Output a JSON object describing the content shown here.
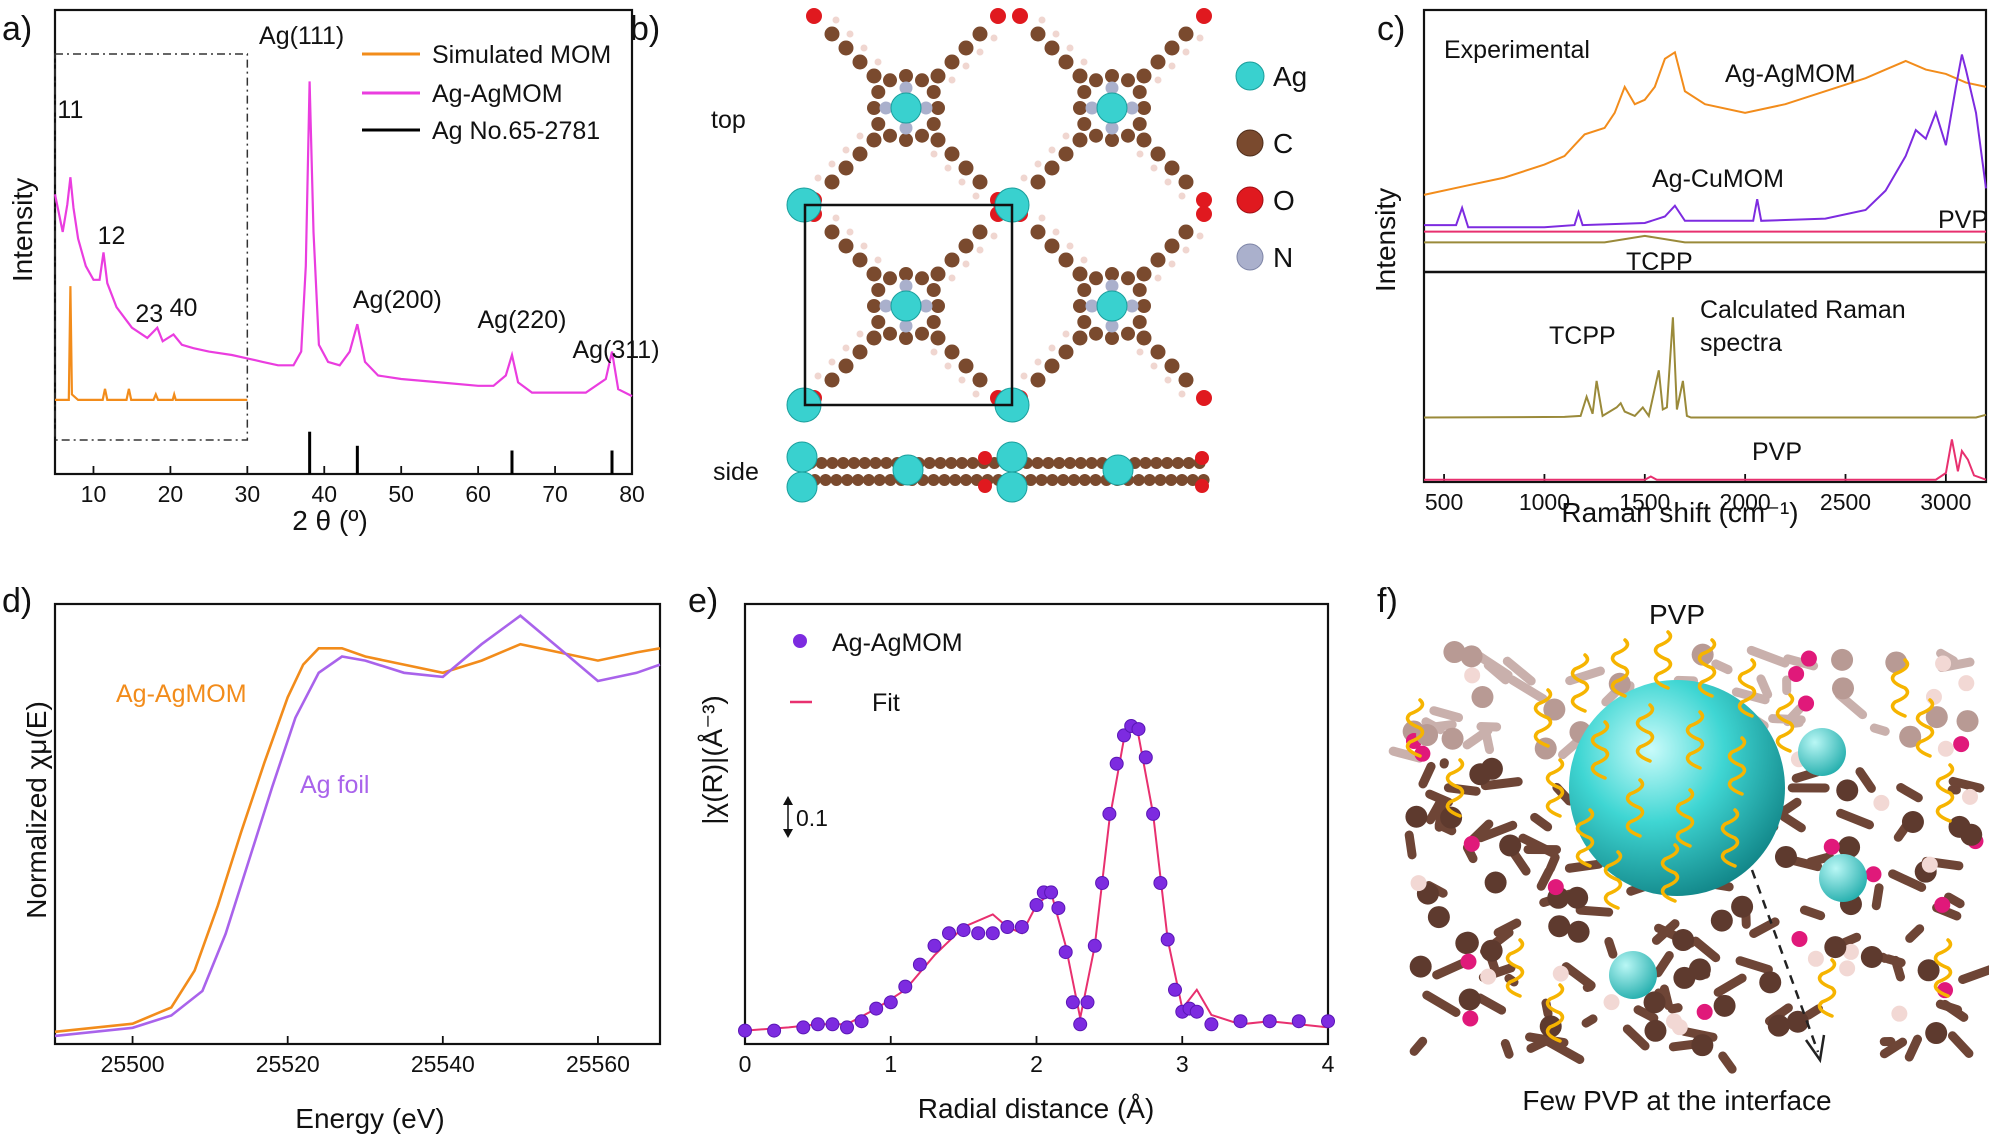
{
  "chart_data": [
    {
      "panel": "a)",
      "type": "line",
      "xlabel": "2 θ (º)",
      "ylabel": "Intensity",
      "xlim": [
        5,
        80
      ],
      "xticks": [
        10,
        20,
        30,
        40,
        50,
        60,
        70,
        80
      ],
      "inset_box_x": [
        5,
        30
      ],
      "legend_position": "top-right",
      "legend": [
        "Simulated MOM",
        "Ag-AgMOM",
        "Ag No.65-2781"
      ],
      "colors": {
        "Simulated MOM": "#f28c1b",
        "Ag-AgMOM": "#ea3ddf",
        "Ag No.65-2781": "#000000"
      },
      "peak_labels": [
        {
          "text": "11",
          "x": 7.0
        },
        {
          "text": "12",
          "x": 11.3
        },
        {
          "text": "23",
          "x": 18.3
        },
        {
          "text": "40",
          "x": 20.4
        },
        {
          "text": "Ag(111)",
          "x": 38.1
        },
        {
          "text": "Ag(200)",
          "x": 44.3
        },
        {
          "text": "Ag(220)",
          "x": 64.4
        },
        {
          "text": "Ag(311)",
          "x": 77.4
        }
      ],
      "series": [
        {
          "name": "Ag-AgMOM",
          "x": [
            5,
            6,
            6.6,
            7,
            7.4,
            8,
            9,
            10,
            10.8,
            11.3,
            11.8,
            13,
            15,
            17,
            18.3,
            19,
            20.4,
            21.5,
            23,
            25,
            28,
            30,
            32,
            34,
            36,
            37,
            37.6,
            38.1,
            38.6,
            39.3,
            40.5,
            42,
            43.3,
            44.3,
            45.3,
            47,
            50,
            55,
            60,
            62,
            63.6,
            64.4,
            65.2,
            67,
            70,
            74,
            76.6,
            77.4,
            78.2,
            80
          ],
          "y": [
            0.66,
            0.55,
            0.63,
            0.71,
            0.62,
            0.53,
            0.45,
            0.41,
            0.41,
            0.49,
            0.4,
            0.33,
            0.27,
            0.24,
            0.27,
            0.23,
            0.25,
            0.22,
            0.21,
            0.2,
            0.19,
            0.18,
            0.17,
            0.16,
            0.16,
            0.2,
            0.45,
            0.99,
            0.55,
            0.22,
            0.17,
            0.16,
            0.2,
            0.28,
            0.17,
            0.13,
            0.12,
            0.11,
            0.1,
            0.1,
            0.13,
            0.19,
            0.11,
            0.08,
            0.08,
            0.08,
            0.12,
            0.2,
            0.09,
            0.07
          ]
        },
        {
          "name": "Simulated MOM",
          "x": [
            5,
            6.8,
            7.0,
            7.2,
            8,
            11.2,
            11.5,
            11.8,
            14.3,
            14.6,
            14.9,
            17.8,
            18.1,
            18.4,
            20.3,
            20.5,
            20.7,
            22,
            24,
            28,
            30
          ],
          "y": [
            0.035,
            0.035,
            0.34,
            0.05,
            0.035,
            0.035,
            0.065,
            0.035,
            0.035,
            0.065,
            0.035,
            0.035,
            0.05,
            0.035,
            0.035,
            0.05,
            0.035,
            0.035,
            0.035,
            0.035,
            0.035
          ]
        },
        {
          "name": "Ag No.65-2781",
          "type": "stick",
          "x": [
            38.1,
            44.3,
            64.4,
            77.4
          ],
          "y": [
            0.09,
            0.06,
            0.05,
            0.05
          ]
        }
      ]
    },
    {
      "panel": "b)",
      "type": "diagram",
      "view_labels": [
        "top",
        "side"
      ],
      "legend": [
        {
          "name": "Ag",
          "color": "#39d1cf"
        },
        {
          "name": "C",
          "color": "#7a4a2e"
        },
        {
          "name": "O",
          "color": "#e0191f"
        },
        {
          "name": "N",
          "color": "#aab0cc"
        }
      ]
    },
    {
      "panel": "c)",
      "type": "line",
      "xlabel": "Raman shift (cm⁻¹)",
      "ylabel": "Intensity",
      "xlim": [
        400,
        3200
      ],
      "xticks": [
        500,
        1000,
        1500,
        2000,
        2500,
        3000
      ],
      "subpanel_labels": [
        "Experimental",
        "Calculated Raman spectra"
      ],
      "series_labels": [
        "Ag-AgMOM",
        "Ag-CuMOM",
        "PVP",
        "TCPP",
        "TCPP",
        "PVP"
      ],
      "colors": {
        "Ag-AgMOM": "#f28c1b",
        "Ag-CuMOM": "#7d2be0",
        "PVP": "#e8306f",
        "TCPP": "#9a8a3a"
      },
      "series": [
        {
          "name": "Ag-AgMOM",
          "panel": "top",
          "x": [
            400,
            600,
            800,
            1000,
            1100,
            1150,
            1200,
            1300,
            1350,
            1400,
            1450,
            1500,
            1550,
            1600,
            1650,
            1700,
            1800,
            2000,
            2200,
            2400,
            2600,
            2700,
            2800,
            2900,
            3000,
            3100,
            3200
          ],
          "y": [
            0.32,
            0.36,
            0.4,
            0.46,
            0.5,
            0.55,
            0.6,
            0.63,
            0.7,
            0.82,
            0.74,
            0.76,
            0.82,
            0.95,
            0.98,
            0.8,
            0.74,
            0.7,
            0.74,
            0.8,
            0.86,
            0.9,
            0.94,
            0.9,
            0.88,
            0.84,
            0.82
          ]
        },
        {
          "name": "Ag-CuMOM",
          "panel": "top",
          "x": [
            400,
            560,
            590,
            620,
            1000,
            1150,
            1170,
            1190,
            1500,
            1600,
            1650,
            1700,
            2000,
            2040,
            2060,
            2080,
            2400,
            2600,
            2700,
            2800,
            2850,
            2900,
            2950,
            3000,
            3050,
            3080,
            3100,
            3150,
            3200
          ],
          "y": [
            0.18,
            0.18,
            0.26,
            0.17,
            0.17,
            0.18,
            0.24,
            0.18,
            0.19,
            0.22,
            0.27,
            0.2,
            0.2,
            0.2,
            0.3,
            0.2,
            0.21,
            0.25,
            0.34,
            0.5,
            0.62,
            0.58,
            0.7,
            0.55,
            0.82,
            0.97,
            0.9,
            0.7,
            0.35
          ]
        },
        {
          "name": "PVP",
          "panel": "top",
          "x": [
            400,
            3200
          ],
          "y": [
            0.15,
            0.15
          ]
        },
        {
          "name": "TCPP",
          "panel": "top",
          "x": [
            400,
            1300,
            1500,
            1700,
            1900,
            3200
          ],
          "y": [
            0.1,
            0.1,
            0.13,
            0.1,
            0.1,
            0.1
          ]
        },
        {
          "name": "TCPP",
          "panel": "calculated",
          "x": [
            400,
            1100,
            1180,
            1210,
            1240,
            1260,
            1290,
            1360,
            1380,
            1400,
            1450,
            1490,
            1520,
            1570,
            1590,
            1610,
            1640,
            1660,
            1690,
            1710,
            1730,
            3150,
            3200
          ],
          "y": [
            0.005,
            0.01,
            0.02,
            0.2,
            0.04,
            0.35,
            0.02,
            0.1,
            0.14,
            0.06,
            0.02,
            0.1,
            0.02,
            0.45,
            0.08,
            0.1,
            0.95,
            0.08,
            0.35,
            0.02,
            0.005,
            0.005,
            0.03
          ]
        },
        {
          "name": "PVP",
          "panel": "calculated",
          "x": [
            400,
            1500,
            1530,
            1560,
            2950,
            3000,
            3030,
            3060,
            3080,
            3110,
            3140,
            3200
          ],
          "y": [
            0.005,
            0.005,
            0.06,
            0.005,
            0.005,
            0.12,
            0.7,
            0.15,
            0.5,
            0.35,
            0.08,
            0.005
          ]
        }
      ]
    },
    {
      "panel": "d)",
      "type": "line",
      "xlabel": "Energy (eV)",
      "ylabel": "Normalized χμ(E)",
      "xlim": [
        25490,
        25568
      ],
      "xticks": [
        25500,
        25520,
        25540,
        25560
      ],
      "colors": {
        "Ag-AgMOM": "#f28c1b",
        "Ag foil": "#a963eb"
      },
      "series": [
        {
          "name": "Ag-AgMOM",
          "x": [
            25490,
            25500,
            25505,
            25508,
            25511,
            25514,
            25517,
            25520,
            25522,
            25524,
            25527,
            25530,
            25535,
            25540,
            25545,
            25550,
            25555,
            25560,
            25565,
            25568
          ],
          "y": [
            0.02,
            0.04,
            0.08,
            0.17,
            0.33,
            0.51,
            0.68,
            0.84,
            0.92,
            0.96,
            0.96,
            0.94,
            0.92,
            0.9,
            0.93,
            0.97,
            0.95,
            0.93,
            0.95,
            0.96
          ]
        },
        {
          "name": "Ag foil",
          "x": [
            25490,
            25500,
            25505,
            25509,
            25512,
            25515,
            25518,
            25521,
            25524,
            25527,
            25530,
            25535,
            25540,
            25545,
            25550,
            25555,
            25560,
            25565,
            25568
          ],
          "y": [
            0.01,
            0.03,
            0.06,
            0.12,
            0.26,
            0.44,
            0.62,
            0.79,
            0.9,
            0.94,
            0.93,
            0.9,
            0.89,
            0.97,
            1.04,
            0.96,
            0.88,
            0.9,
            0.92
          ]
        }
      ]
    },
    {
      "panel": "e)",
      "type": "line",
      "xlabel": "Radial distance (Å)",
      "ylabel": "|χ(R)|(Å⁻³)",
      "xlim": [
        0,
        4
      ],
      "xticks": [
        0,
        1,
        2,
        3,
        4
      ],
      "scale_bar_label": "0.1",
      "legend": [
        "Ag-AgMOM",
        "Fit"
      ],
      "colors": {
        "Ag-AgMOM": "#7d2be0",
        "Fit": "#e8306f"
      },
      "series": [
        {
          "name": "Ag-AgMOM",
          "style": "markers",
          "x": [
            0,
            0.2,
            0.4,
            0.5,
            0.6,
            0.7,
            0.8,
            0.9,
            1.0,
            1.1,
            1.2,
            1.3,
            1.4,
            1.5,
            1.6,
            1.7,
            1.8,
            1.9,
            2.0,
            2.05,
            2.1,
            2.15,
            2.2,
            2.25,
            2.3,
            2.35,
            2.4,
            2.45,
            2.5,
            2.55,
            2.6,
            2.65,
            2.7,
            2.75,
            2.8,
            2.85,
            2.9,
            2.95,
            3.0,
            3.05,
            3.1,
            3.2,
            3.4,
            3.6,
            3.8,
            4.0
          ],
          "y": [
            0.03,
            0.03,
            0.04,
            0.05,
            0.05,
            0.04,
            0.06,
            0.1,
            0.12,
            0.17,
            0.24,
            0.3,
            0.34,
            0.35,
            0.34,
            0.34,
            0.36,
            0.36,
            0.43,
            0.47,
            0.47,
            0.42,
            0.28,
            0.12,
            0.05,
            0.12,
            0.3,
            0.5,
            0.72,
            0.88,
            0.97,
            1.0,
            0.99,
            0.9,
            0.72,
            0.5,
            0.32,
            0.16,
            0.09,
            0.1,
            0.09,
            0.05,
            0.06,
            0.06,
            0.06,
            0.06
          ]
        },
        {
          "name": "Fit",
          "style": "line",
          "x": [
            0,
            0.3,
            0.5,
            0.7,
            0.9,
            1.1,
            1.3,
            1.5,
            1.7,
            1.8,
            1.9,
            2.0,
            2.1,
            2.2,
            2.3,
            2.4,
            2.5,
            2.6,
            2.65,
            2.7,
            2.8,
            2.9,
            3.0,
            3.1,
            3.2,
            3.4,
            3.6,
            3.8,
            4.0
          ],
          "y": [
            0.03,
            0.04,
            0.05,
            0.05,
            0.1,
            0.16,
            0.27,
            0.36,
            0.4,
            0.36,
            0.34,
            0.43,
            0.47,
            0.3,
            0.07,
            0.3,
            0.7,
            0.96,
            1.0,
            0.97,
            0.72,
            0.32,
            0.1,
            0.16,
            0.08,
            0.05,
            0.06,
            0.05,
            0.04
          ]
        }
      ]
    },
    {
      "panel": "f)",
      "type": "diagram",
      "labels": [
        "PVP",
        "Few PVP at the interface"
      ]
    }
  ]
}
